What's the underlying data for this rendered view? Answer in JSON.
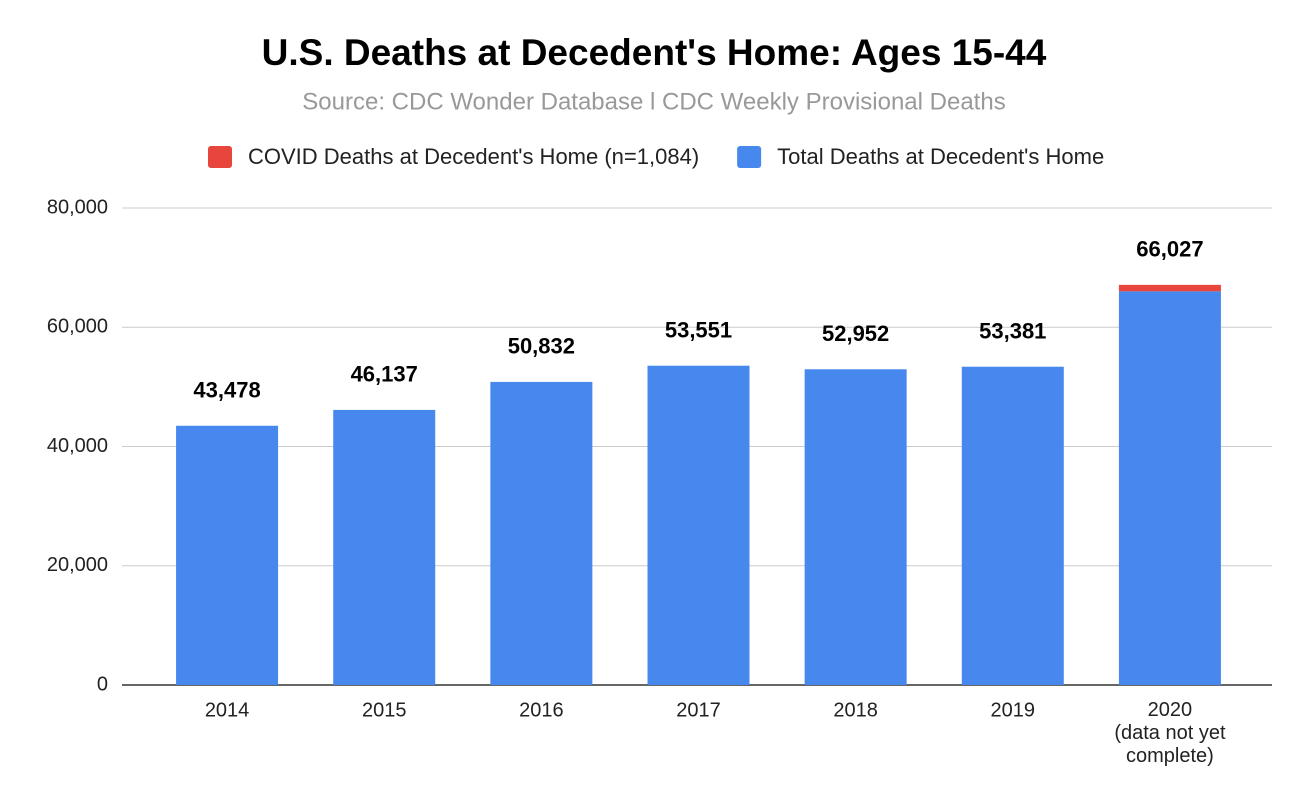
{
  "chart_data": {
    "type": "stacked_bar",
    "title": "U.S. Deaths at Decedent's Home: Ages 15-44",
    "subtitle": "Source: CDC Wonder Database l CDC Weekly Provisional Deaths",
    "categories": [
      "2014",
      "2015",
      "2016",
      "2017",
      "2018",
      "2019",
      "2020\n(data not yet\ncomplete)"
    ],
    "series": [
      {
        "name": "Total Deaths at Decedent's Home",
        "color": "#4688ee",
        "values": [
          43478,
          46137,
          50832,
          53551,
          52952,
          53381,
          66027
        ],
        "value_labels": [
          "43,478",
          "46,137",
          "50,832",
          "53,551",
          "52,952",
          "53,381",
          "66,027"
        ]
      },
      {
        "name": "COVID Deaths at Decedent's Home (n=1,084)",
        "color": "#e8453c",
        "values": [
          null,
          null,
          null,
          null,
          null,
          null,
          1084
        ]
      }
    ],
    "legend_order": [
      1,
      0
    ],
    "ylim": [
      0,
      80000
    ],
    "yticks": [
      0,
      {
        "value": 20000,
        "label": "20,000"
      },
      {
        "value": 40000,
        "label": "40,000"
      },
      {
        "value": 60000,
        "label": "60,000"
      },
      {
        "value": 80000,
        "label": "80,000"
      }
    ],
    "grid": true
  }
}
